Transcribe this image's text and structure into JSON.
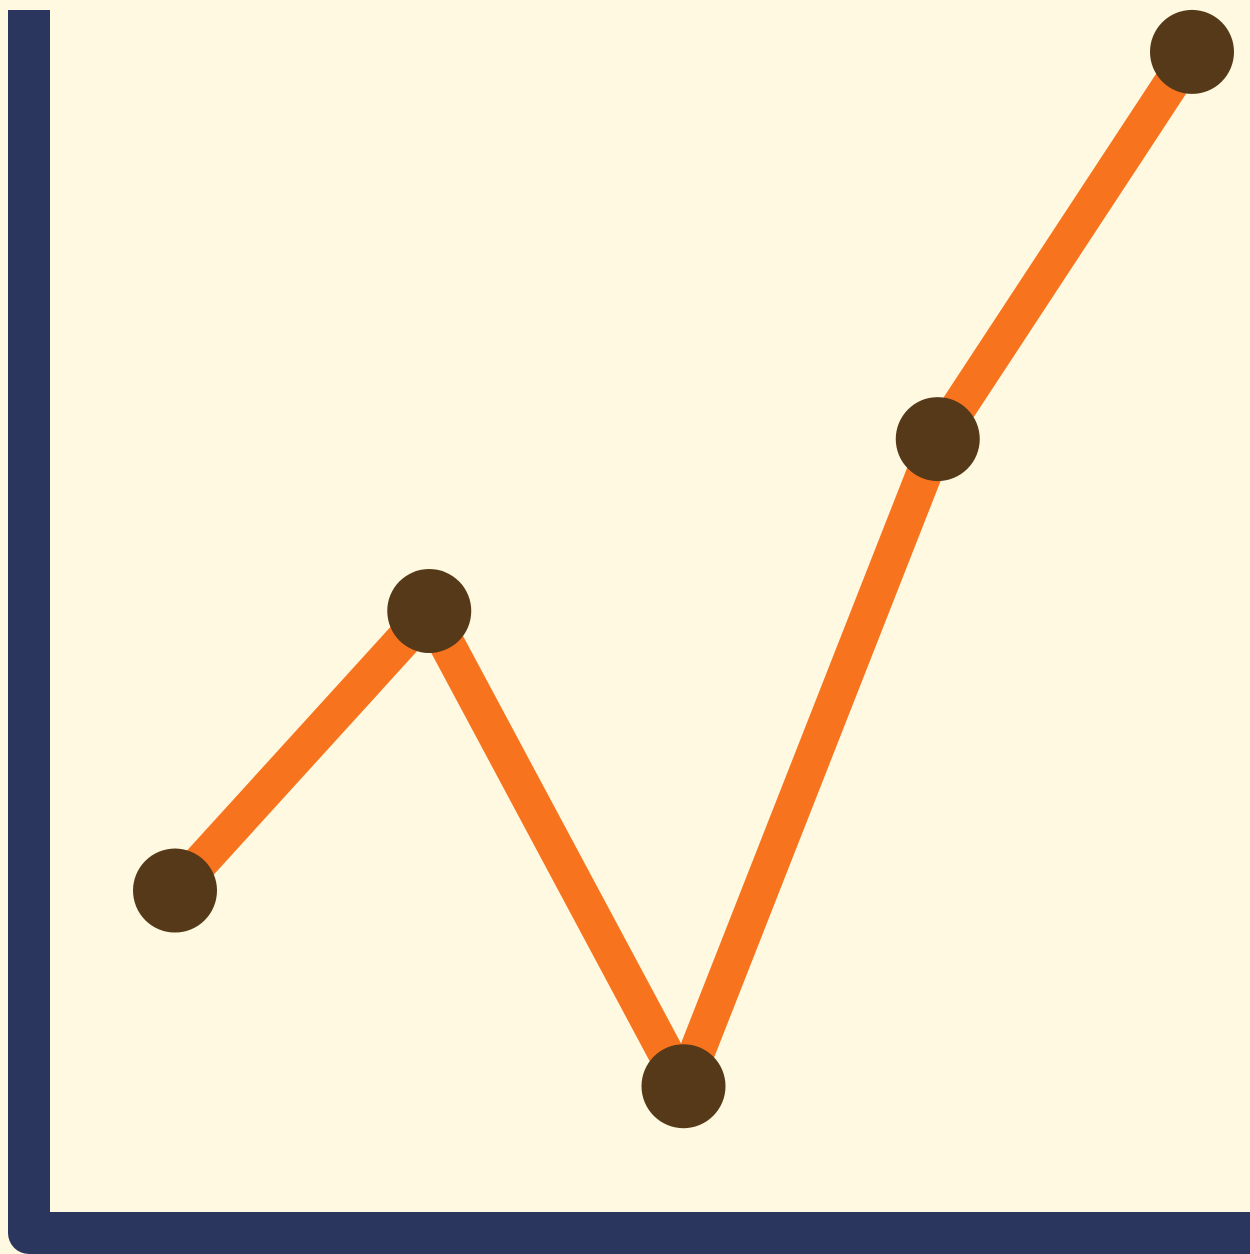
{
  "chart_data": {
    "type": "line",
    "title": "",
    "xlabel": "",
    "ylabel": "",
    "x": [
      1,
      2,
      3,
      4,
      5
    ],
    "xlim": [
      0.37,
      5.0
    ],
    "ylim": [
      0,
      8.6
    ],
    "grid": false,
    "legend": "none",
    "series": [
      {
        "values": [
          2.3,
          4.3,
          0.9,
          5.53,
          8.3
        ]
      }
    ]
  },
  "colors": {
    "background": "#fef9e0",
    "axis": "#2b365e",
    "line": "#f8731d",
    "marker": "#553918"
  }
}
